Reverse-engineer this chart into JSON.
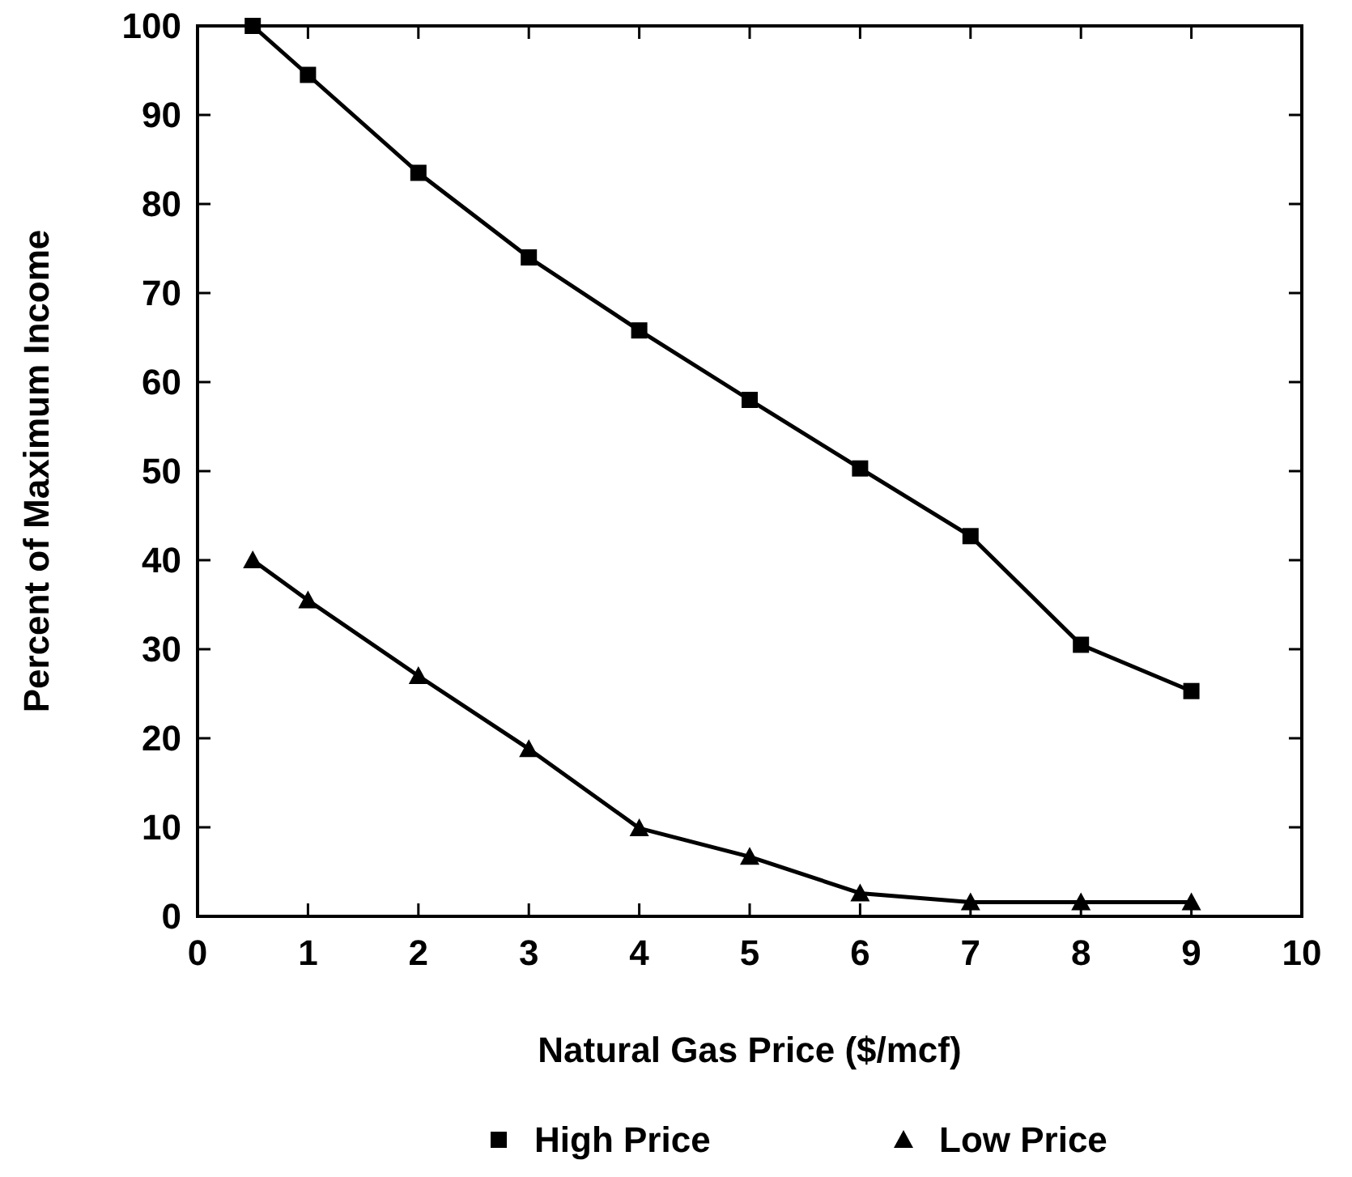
{
  "chart_data": {
    "type": "line",
    "xlabel": "Natural Gas Price ($/mcf)",
    "ylabel": "Percent of Maximum Income",
    "xlim": [
      0,
      10
    ],
    "xticks": [
      0,
      1,
      2,
      3,
      4,
      5,
      6,
      7,
      8,
      9,
      10
    ],
    "ylim": [
      0,
      100
    ],
    "yticks": [
      0,
      10,
      20,
      30,
      40,
      50,
      60,
      70,
      80,
      90,
      100
    ],
    "grid": false,
    "legend": "bottom",
    "x": [
      0.5,
      1,
      2,
      3,
      4,
      5,
      6,
      7,
      8,
      9
    ],
    "series": [
      {
        "name": "High Price",
        "color": "#000000",
        "marker": "square",
        "values": [
          100,
          94.5,
          83.5,
          74,
          65.8,
          58,
          50.3,
          42.7,
          30.5,
          25.3
        ]
      },
      {
        "name": "Low Price",
        "color": "#000000",
        "marker": "triangle",
        "values": [
          40,
          35.5,
          27,
          18.8,
          9.9,
          6.7,
          2.6,
          1.6,
          1.6,
          1.6
        ]
      }
    ]
  }
}
